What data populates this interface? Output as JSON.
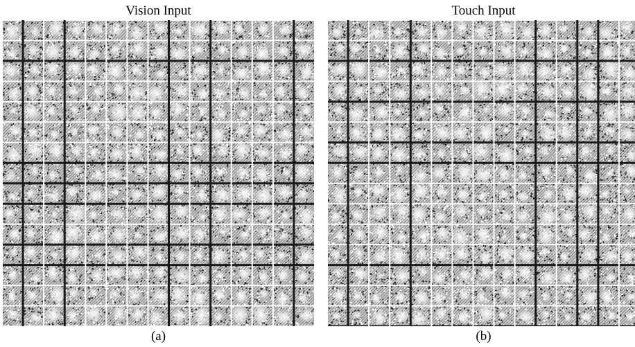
{
  "panels": [
    {
      "title": "Vision Input",
      "caption": "(a)",
      "grid": {
        "rows": 15,
        "cols": 15
      }
    },
    {
      "title": "Touch Input",
      "caption": "(b)",
      "grid": {
        "rows": 15,
        "cols": 15
      }
    }
  ],
  "colors": {
    "background": "#ffffff",
    "ink": "#000000",
    "cell_bg": "#c8c8c8",
    "cell_dark": "#1a1a1a",
    "separator": "#ffffff"
  }
}
